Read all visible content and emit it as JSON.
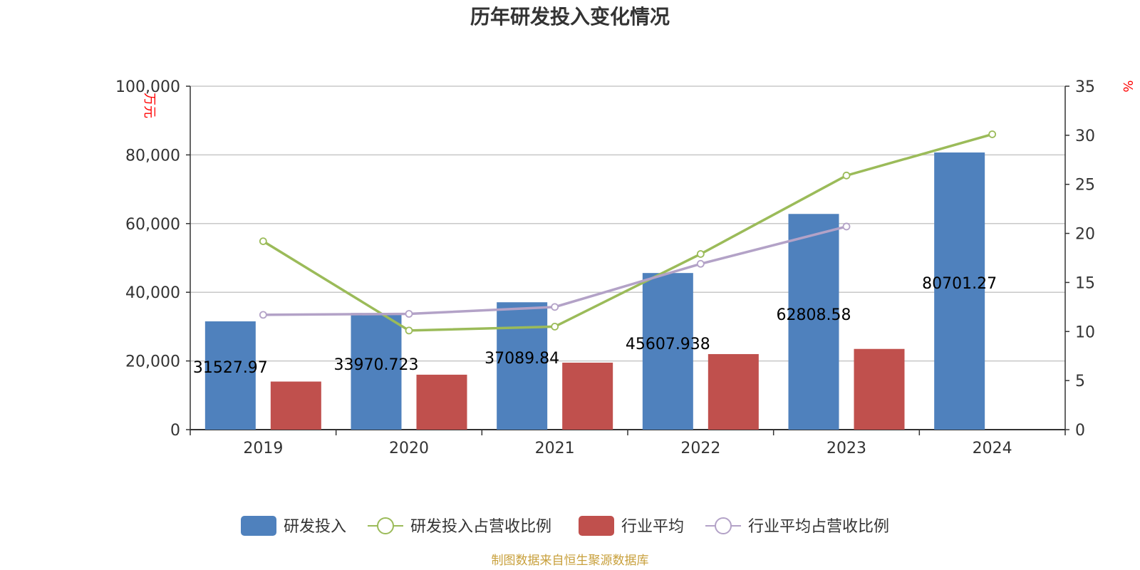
{
  "chart_data": {
    "type": "bar",
    "title": "历年研发投入变化情况",
    "categories": [
      "2019",
      "2020",
      "2021",
      "2022",
      "2023",
      "2024"
    ],
    "y_left": {
      "unit": "万元",
      "min": 0,
      "max": 100000,
      "ticks": [
        "0",
        "20,000",
        "40,000",
        "60,000",
        "80,000",
        "100,000"
      ]
    },
    "y_right": {
      "unit": "%",
      "min": 0,
      "max": 35,
      "ticks": [
        "0",
        "5",
        "10",
        "15",
        "20",
        "25",
        "30",
        "35"
      ]
    },
    "grid": true,
    "legend_position": "bottom",
    "series": [
      {
        "name": "研发投入",
        "type": "bar",
        "axis": "left",
        "color": "#4f81bd",
        "values": [
          31527.97,
          33970.723,
          37089.84,
          45607.938,
          62808.58,
          80701.27
        ],
        "labels": [
          "31527.97",
          "33970.723",
          "37089.84",
          "45607.938",
          "62808.58",
          "80701.27"
        ]
      },
      {
        "name": "研发投入占营收比例",
        "type": "line",
        "axis": "right",
        "color": "#9bbb59",
        "values": [
          19.2,
          10.1,
          10.5,
          17.9,
          25.9,
          30.1
        ]
      },
      {
        "name": "行业平均",
        "type": "bar",
        "axis": "left",
        "color": "#c0504d",
        "values": [
          14000,
          16000,
          19500,
          22000,
          23500,
          null
        ]
      },
      {
        "name": "行业平均占营收比例",
        "type": "line",
        "axis": "right",
        "color": "#b3a2c7",
        "values": [
          11.7,
          11.8,
          12.5,
          16.9,
          20.7,
          null
        ]
      }
    ]
  },
  "source": "制图数据来自恒生聚源数据库"
}
